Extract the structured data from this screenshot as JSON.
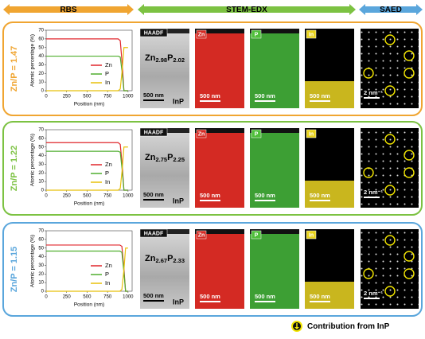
{
  "header": {
    "rbs": "RBS",
    "stem_edx": "STEM-EDX",
    "saed": "SAED"
  },
  "chart_data": [
    {
      "type": "line",
      "x_label": "Position (nm)",
      "y_label": "Atomic percentage (%)",
      "x": [
        0,
        880,
        905,
        930,
        950,
        1000
      ],
      "series": [
        {
          "name": "Zn",
          "color": "#e0262b",
          "values": [
            60,
            60,
            58,
            30,
            0,
            0
          ]
        },
        {
          "name": "P",
          "color": "#4fae2e",
          "values": [
            40,
            40,
            39,
            20,
            0,
            0
          ]
        },
        {
          "name": "In",
          "color": "#e8c10a",
          "values": [
            0,
            0,
            2,
            25,
            50,
            50
          ]
        }
      ],
      "xlim": [
        0,
        1050
      ],
      "ylim": [
        0,
        70
      ],
      "xticks": [
        0,
        250,
        500,
        750,
        1000
      ],
      "yticks": [
        0,
        10,
        20,
        30,
        40,
        50,
        60,
        70
      ],
      "legend": "right"
    },
    {
      "type": "line",
      "x_label": "Position (nm)",
      "y_label": "Atomic percentage (%)",
      "x": [
        0,
        880,
        905,
        930,
        950,
        1000
      ],
      "series": [
        {
          "name": "Zn",
          "color": "#e0262b",
          "values": [
            55,
            55,
            53,
            28,
            0,
            0
          ]
        },
        {
          "name": "P",
          "color": "#4fae2e",
          "values": [
            45,
            45,
            44,
            22,
            0,
            0
          ]
        },
        {
          "name": "In",
          "color": "#e8c10a",
          "values": [
            0,
            0,
            2,
            25,
            50,
            50
          ]
        }
      ],
      "xlim": [
        0,
        1050
      ],
      "ylim": [
        0,
        70
      ],
      "xticks": [
        0,
        250,
        500,
        750,
        1000
      ],
      "yticks": [
        0,
        10,
        20,
        30,
        40,
        50,
        60,
        70
      ],
      "legend": "right"
    },
    {
      "type": "line",
      "x_label": "Position (nm)",
      "y_label": "Atomic percentage (%)",
      "x": [
        0,
        900,
        925,
        950,
        970,
        1000
      ],
      "series": [
        {
          "name": "Zn",
          "color": "#e0262b",
          "values": [
            53.5,
            53.5,
            52,
            26,
            0,
            0
          ]
        },
        {
          "name": "P",
          "color": "#4fae2e",
          "values": [
            46.5,
            46.5,
            45,
            22,
            0,
            0
          ]
        },
        {
          "name": "In",
          "color": "#e8c10a",
          "values": [
            0,
            0,
            2,
            25,
            50,
            50
          ]
        }
      ],
      "xlim": [
        0,
        1050
      ],
      "ylim": [
        0,
        70
      ],
      "xticks": [
        0,
        250,
        500,
        750,
        1000
      ],
      "yticks": [
        0,
        10,
        20,
        30,
        40,
        50,
        60,
        70
      ],
      "legend": "right"
    }
  ],
  "panels": [
    {
      "label": "Zn/P = 1.47",
      "color": "#f0a531",
      "haadf": {
        "tag": "HAADF",
        "zn": "Zn",
        "zn_sub": "2.98",
        "p": "P",
        "p_sub": "2.02",
        "scale": "500 nm",
        "substrate": "InP"
      },
      "maps": [
        {
          "tag": "Zn",
          "scale": "500 nm"
        },
        {
          "tag": "P",
          "scale": "500 nm"
        },
        {
          "tag": "In",
          "scale": "500 nm"
        }
      ],
      "saed": {
        "scale": "2 nm⁻¹"
      }
    },
    {
      "label": "Zn/P = 1.22",
      "color": "#7cc242",
      "haadf": {
        "tag": "HAADF",
        "zn": "Zn",
        "zn_sub": "2.75",
        "p": "P",
        "p_sub": "2.25",
        "scale": "500 nm",
        "substrate": "InP"
      },
      "maps": [
        {
          "tag": "Zn",
          "scale": "500 nm"
        },
        {
          "tag": "P",
          "scale": "500 nm"
        },
        {
          "tag": "In",
          "scale": "500 nm"
        }
      ],
      "saed": {
        "scale": "2 nm⁻¹"
      }
    },
    {
      "label": "Zn/P = 1.15",
      "color": "#5aa6dc",
      "haadf": {
        "tag": "HAADF",
        "zn": "Zn",
        "zn_sub": "2.67",
        "p": "P",
        "p_sub": "2.33",
        "scale": "500 nm",
        "substrate": "InP"
      },
      "maps": [
        {
          "tag": "Zn",
          "scale": "500 nm"
        },
        {
          "tag": "P",
          "scale": "500 nm"
        },
        {
          "tag": "In",
          "scale": "500 nm"
        }
      ],
      "saed": {
        "scale": "2 nm⁻¹"
      }
    }
  ],
  "legend": "Contribution from InP"
}
